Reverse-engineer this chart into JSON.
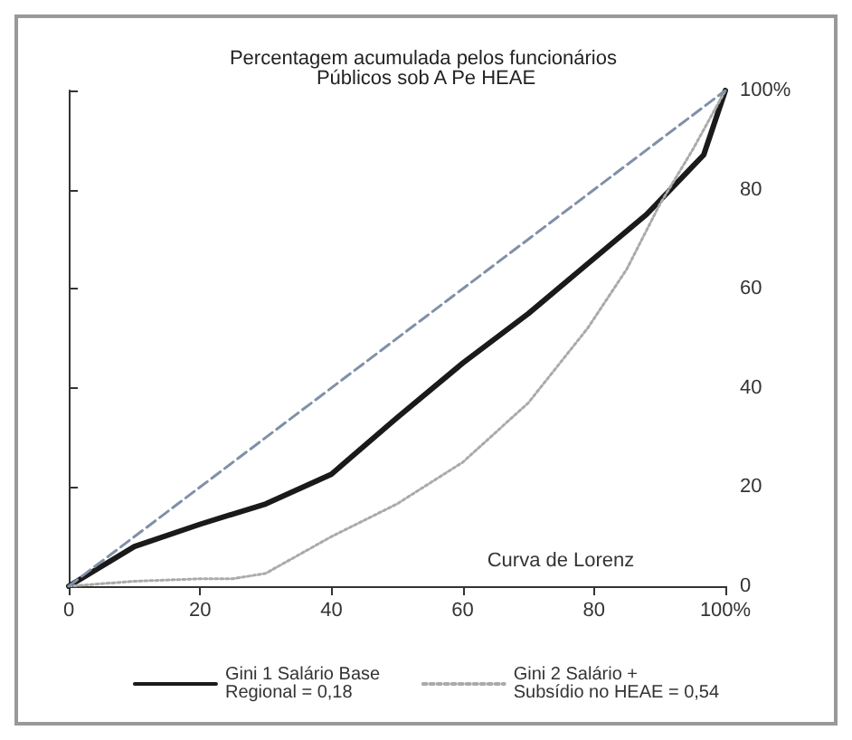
{
  "chart_data": {
    "type": "line",
    "title": "Percentagem acumulada pelos funcionários Públicos sob A Pe HEAE",
    "annotations": [
      "Curva de Lorenz"
    ],
    "xlim": [
      0,
      100
    ],
    "xticks": [
      0,
      20,
      40,
      60,
      80,
      {
        "value": 100,
        "label": "100%"
      }
    ],
    "ylim": [
      0,
      100
    ],
    "yticks": [
      0,
      20,
      40,
      60,
      80,
      {
        "value": 100,
        "label": "100%"
      }
    ],
    "grid": false,
    "legend": "bottom",
    "marker": "none",
    "series": [
      {
        "name": "Gini 1 Salário Base Regional = 0,18",
        "color": "#1a1a1a",
        "line_style": "solid",
        "x": [
          0,
          10,
          20,
          30,
          40,
          50,
          60,
          70,
          79,
          88,
          96.7,
          100
        ],
        "values": [
          0,
          8,
          12.5,
          16.6,
          22.6,
          34,
          45,
          55,
          65,
          75,
          87,
          100
        ]
      },
      {
        "name": "Gini 2 Salário + Subsídio no HEAE = 0,54",
        "color": "#aaaaaa",
        "line_style": "dotted",
        "x": [
          0,
          10,
          20,
          25,
          30,
          40,
          50,
          60,
          70,
          79,
          85,
          90,
          95,
          100
        ],
        "values": [
          0,
          1,
          1.5,
          1.5,
          2.6,
          10,
          16.6,
          25,
          37,
          52,
          64,
          77,
          88,
          100
        ]
      },
      {
        "color": "#8090a8",
        "line_style": "dashed",
        "x": [
          0,
          100
        ],
        "values": [
          0,
          100
        ]
      }
    ]
  }
}
